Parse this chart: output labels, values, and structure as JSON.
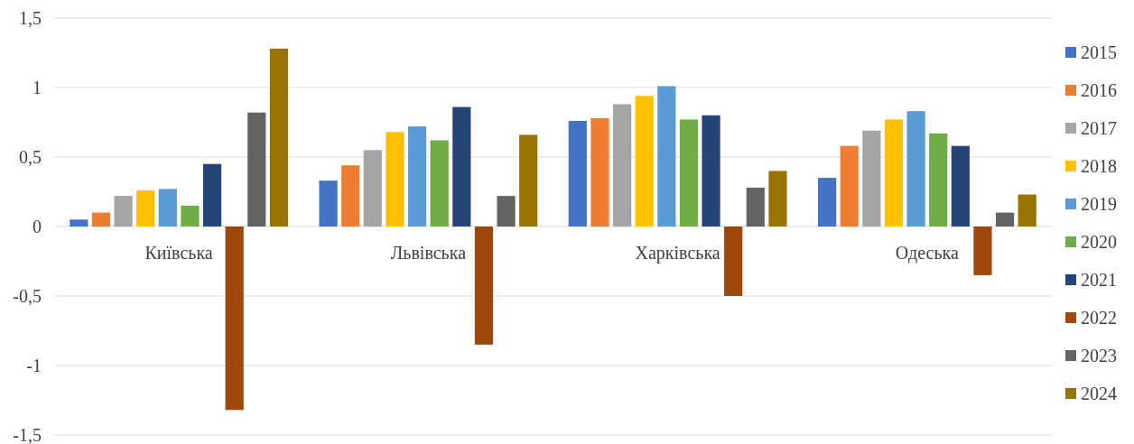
{
  "chart_data": {
    "type": "bar",
    "categories": [
      "Київська",
      "Львівська",
      "Харківська",
      "Одеська"
    ],
    "series": [
      {
        "name": "2015",
        "color": "#4472c4",
        "values": [
          0.05,
          0.33,
          0.76,
          0.35
        ]
      },
      {
        "name": "2016",
        "color": "#ed7d31",
        "values": [
          0.1,
          0.44,
          0.78,
          0.58
        ]
      },
      {
        "name": "2017",
        "color": "#a5a5a5",
        "values": [
          0.22,
          0.55,
          0.88,
          0.69
        ]
      },
      {
        "name": "2018",
        "color": "#ffc000",
        "values": [
          0.26,
          0.68,
          0.94,
          0.77
        ]
      },
      {
        "name": "2019",
        "color": "#5b9bd5",
        "values": [
          0.27,
          0.72,
          1.01,
          0.83
        ]
      },
      {
        "name": "2020",
        "color": "#70ad47",
        "values": [
          0.15,
          0.62,
          0.77,
          0.67
        ]
      },
      {
        "name": "2021",
        "color": "#264478",
        "values": [
          0.45,
          0.86,
          0.8,
          0.58
        ]
      },
      {
        "name": "2022",
        "color": "#9e480e",
        "values": [
          -1.32,
          -0.85,
          -0.5,
          -0.35
        ]
      },
      {
        "name": "2023",
        "color": "#636363",
        "values": [
          0.82,
          0.22,
          0.28,
          0.1
        ]
      },
      {
        "name": "2024",
        "color": "#997300",
        "values": [
          1.28,
          0.66,
          0.4,
          0.23
        ]
      }
    ],
    "ylim": [
      -1.5,
      1.5
    ],
    "yticks": [
      {
        "value": -1.5,
        "label": "-1,5"
      },
      {
        "value": -1,
        "label": "-1"
      },
      {
        "value": -0.5,
        "label": "-0,5"
      },
      0,
      {
        "value": 0.5,
        "label": "0,5"
      },
      1,
      {
        "value": 1.5,
        "label": "1,5"
      }
    ],
    "grid": "y",
    "legend": "right"
  }
}
